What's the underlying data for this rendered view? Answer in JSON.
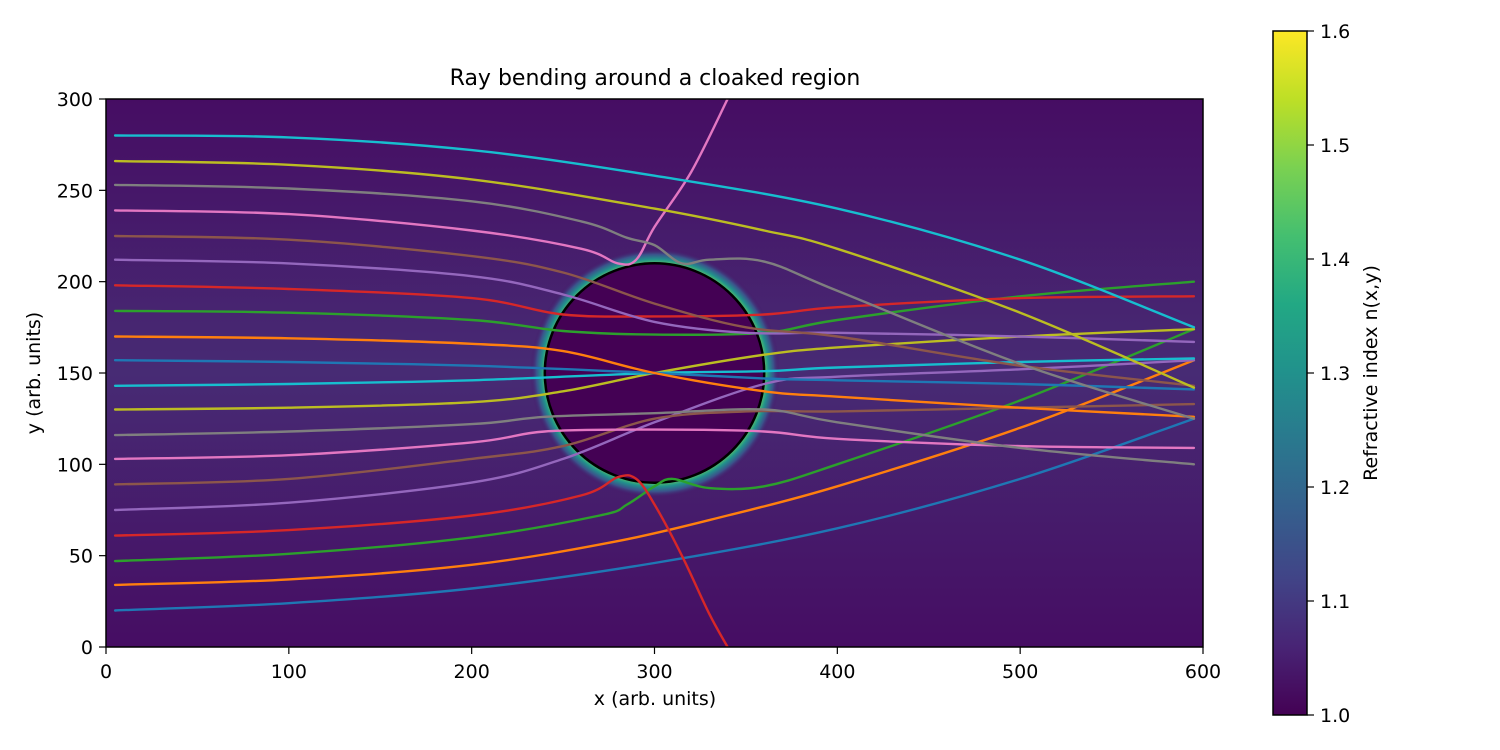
{
  "chart_data": {
    "type": "heatmap",
    "title": "Ray bending around a cloaked region",
    "xlabel": "x (arb. units)",
    "ylabel": "y (arb. units)",
    "xlim": [
      0,
      600
    ],
    "ylim": [
      0,
      300
    ],
    "xticks": [
      "0",
      "100",
      "200",
      "300",
      "400",
      "500",
      "600"
    ],
    "yticks": [
      "0",
      "50",
      "100",
      "150",
      "200",
      "250",
      "300"
    ],
    "colorbar": {
      "label": "Refractive index n(x,y)",
      "range": [
        1.0,
        1.6
      ],
      "ticks": [
        "1.0",
        "1.1",
        "1.2",
        "1.3",
        "1.4",
        "1.5",
        "1.6"
      ],
      "colormap": "viridis"
    },
    "cloak": {
      "center": [
        300,
        150
      ],
      "radius": 60,
      "edge_color": "#000000"
    },
    "grid": false,
    "colors": {
      "tab10": [
        "#1f77b4",
        "#ff7f0e",
        "#2ca02c",
        "#d62728",
        "#9467bd",
        "#8c564b",
        "#e377c2",
        "#7f7f7f",
        "#bcbd22",
        "#17becf"
      ]
    },
    "rays": [
      {
        "color": "#1f77b4",
        "points": [
          [
            5,
            20
          ],
          [
            100,
            24
          ],
          [
            200,
            32
          ],
          [
            300,
            46
          ],
          [
            400,
            65
          ],
          [
            500,
            92
          ],
          [
            595,
            125
          ]
        ]
      },
      {
        "color": "#ff7f0e",
        "points": [
          [
            5,
            34
          ],
          [
            100,
            37
          ],
          [
            200,
            45
          ],
          [
            280,
            58
          ],
          [
            340,
            72
          ],
          [
            400,
            88
          ],
          [
            500,
            120
          ],
          [
            595,
            157
          ]
        ]
      },
      {
        "color": "#2ca02c",
        "points": [
          [
            5,
            47
          ],
          [
            100,
            51
          ],
          [
            200,
            60
          ],
          [
            270,
            72
          ],
          [
            285,
            78
          ],
          [
            300,
            88
          ],
          [
            310,
            92
          ],
          [
            330,
            87
          ],
          [
            360,
            88
          ],
          [
            400,
            100
          ],
          [
            500,
            135
          ],
          [
            595,
            174
          ]
        ]
      },
      {
        "color": "#d62728",
        "points": [
          [
            5,
            61
          ],
          [
            100,
            64
          ],
          [
            200,
            72
          ],
          [
            260,
            83
          ],
          [
            280,
            93
          ],
          [
            290,
            92
          ],
          [
            300,
            78
          ],
          [
            315,
            50
          ],
          [
            330,
            18
          ],
          [
            340,
            0
          ]
        ]
      },
      {
        "color": "#9467bd",
        "points": [
          [
            5,
            75
          ],
          [
            100,
            79
          ],
          [
            200,
            90
          ],
          [
            250,
            103
          ],
          [
            300,
            123
          ],
          [
            360,
            144
          ],
          [
            400,
            148
          ],
          [
            500,
            152
          ],
          [
            595,
            157
          ]
        ]
      },
      {
        "color": "#8c564b",
        "points": [
          [
            5,
            89
          ],
          [
            100,
            92
          ],
          [
            200,
            103
          ],
          [
            250,
            110
          ],
          [
            300,
            125
          ],
          [
            350,
            129
          ],
          [
            400,
            129
          ],
          [
            500,
            131
          ],
          [
            595,
            133
          ]
        ]
      },
      {
        "color": "#e377c2",
        "points": [
          [
            5,
            103
          ],
          [
            100,
            105
          ],
          [
            200,
            112
          ],
          [
            240,
            118
          ],
          [
            300,
            119
          ],
          [
            360,
            118
          ],
          [
            400,
            114
          ],
          [
            500,
            110
          ],
          [
            595,
            109
          ]
        ]
      },
      {
        "color": "#7f7f7f",
        "points": [
          [
            5,
            116
          ],
          [
            100,
            118
          ],
          [
            200,
            122
          ],
          [
            240,
            126
          ],
          [
            300,
            128
          ],
          [
            360,
            130
          ],
          [
            400,
            123
          ],
          [
            500,
            109
          ],
          [
            595,
            100
          ]
        ]
      },
      {
        "color": "#bcbd22",
        "points": [
          [
            5,
            130
          ],
          [
            100,
            131
          ],
          [
            200,
            134
          ],
          [
            250,
            140
          ],
          [
            300,
            150
          ],
          [
            360,
            160
          ],
          [
            400,
            164
          ],
          [
            500,
            170
          ],
          [
            595,
            174
          ]
        ]
      },
      {
        "color": "#17becf",
        "points": [
          [
            5,
            143
          ],
          [
            100,
            144
          ],
          [
            200,
            146
          ],
          [
            300,
            150
          ],
          [
            360,
            151
          ],
          [
            400,
            153
          ],
          [
            500,
            156
          ],
          [
            595,
            158
          ]
        ]
      },
      {
        "color": "#1f77b4",
        "points": [
          [
            5,
            157
          ],
          [
            100,
            156
          ],
          [
            200,
            154
          ],
          [
            300,
            150
          ],
          [
            360,
            147
          ],
          [
            400,
            146
          ],
          [
            500,
            144
          ],
          [
            595,
            141
          ]
        ]
      },
      {
        "color": "#ff7f0e",
        "points": [
          [
            5,
            170
          ],
          [
            100,
            169
          ],
          [
            200,
            166
          ],
          [
            250,
            162
          ],
          [
            300,
            150
          ],
          [
            360,
            140
          ],
          [
            400,
            137
          ],
          [
            500,
            131
          ],
          [
            595,
            126
          ]
        ]
      },
      {
        "color": "#2ca02c",
        "points": [
          [
            5,
            184
          ],
          [
            100,
            183
          ],
          [
            200,
            179
          ],
          [
            250,
            173
          ],
          [
            300,
            171
          ],
          [
            360,
            172
          ],
          [
            400,
            179
          ],
          [
            500,
            192
          ],
          [
            595,
            200
          ]
        ]
      },
      {
        "color": "#d62728",
        "points": [
          [
            5,
            198
          ],
          [
            100,
            196
          ],
          [
            200,
            191
          ],
          [
            250,
            182
          ],
          [
            300,
            181
          ],
          [
            360,
            182
          ],
          [
            400,
            186
          ],
          [
            500,
            191
          ],
          [
            595,
            192
          ]
        ]
      },
      {
        "color": "#9467bd",
        "points": [
          [
            5,
            212
          ],
          [
            100,
            210
          ],
          [
            200,
            203
          ],
          [
            250,
            193
          ],
          [
            300,
            178
          ],
          [
            350,
            172
          ],
          [
            400,
            172
          ],
          [
            500,
            170
          ],
          [
            595,
            167
          ]
        ]
      },
      {
        "color": "#8c564b",
        "points": [
          [
            5,
            225
          ],
          [
            100,
            223
          ],
          [
            200,
            214
          ],
          [
            250,
            205
          ],
          [
            300,
            188
          ],
          [
            350,
            175
          ],
          [
            400,
            170
          ],
          [
            500,
            154
          ],
          [
            595,
            143
          ]
        ]
      },
      {
        "color": "#e377c2",
        "points": [
          [
            5,
            239
          ],
          [
            100,
            237
          ],
          [
            200,
            228
          ],
          [
            260,
            218
          ],
          [
            280,
            210
          ],
          [
            290,
            212
          ],
          [
            300,
            230
          ],
          [
            320,
            260
          ],
          [
            340,
            300
          ]
        ]
      },
      {
        "color": "#7f7f7f",
        "points": [
          [
            5,
            253
          ],
          [
            100,
            251
          ],
          [
            200,
            244
          ],
          [
            260,
            233
          ],
          [
            285,
            224
          ],
          [
            300,
            220
          ],
          [
            315,
            210
          ],
          [
            330,
            212
          ],
          [
            360,
            211
          ],
          [
            400,
            195
          ],
          [
            500,
            155
          ],
          [
            595,
            125
          ]
        ]
      },
      {
        "color": "#bcbd22",
        "points": [
          [
            5,
            266
          ],
          [
            100,
            264
          ],
          [
            200,
            256
          ],
          [
            300,
            240
          ],
          [
            360,
            228
          ],
          [
            400,
            218
          ],
          [
            500,
            183
          ],
          [
            595,
            142
          ]
        ]
      },
      {
        "color": "#17becf",
        "points": [
          [
            5,
            280
          ],
          [
            100,
            279
          ],
          [
            200,
            272
          ],
          [
            300,
            258
          ],
          [
            400,
            240
          ],
          [
            500,
            212
          ],
          [
            595,
            175
          ]
        ]
      }
    ]
  }
}
